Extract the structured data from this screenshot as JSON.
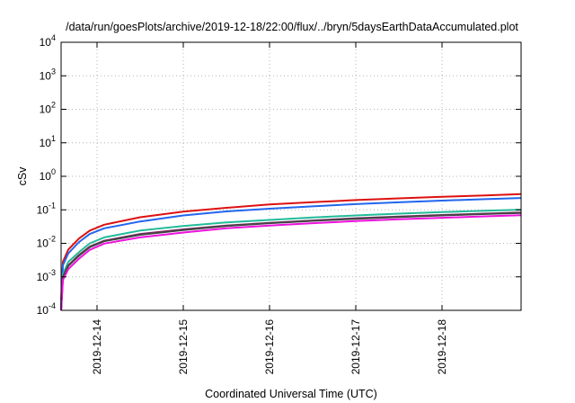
{
  "chart_data": {
    "type": "line",
    "title": "/data/run/goesPlots/archive/2019-12-18/22:00/flux/../bryn/5daysEarthDataAccumulated.plot",
    "xlabel": "Coordinated Universal Time (UTC)",
    "ylabel": "cSv",
    "y_scale": "log",
    "ylim": [
      0.0001,
      10000
    ],
    "xlim": [
      "2019-12-13 14:00",
      "2019-12-18 22:00"
    ],
    "x_ticks": [
      "2019-12-14",
      "2019-12-15",
      "2019-12-16",
      "2019-12-17",
      "2019-12-18"
    ],
    "y_ticks": [
      {
        "value": 0.0001,
        "base": "10",
        "exp": "-4"
      },
      {
        "value": 0.001,
        "base": "10",
        "exp": "-3"
      },
      {
        "value": 0.01,
        "base": "10",
        "exp": "-2"
      },
      {
        "value": 0.1,
        "base": "10",
        "exp": "-1"
      },
      {
        "value": 1,
        "base": "10",
        "exp": "0"
      },
      {
        "value": 10,
        "base": "10",
        "exp": "1"
      },
      {
        "value": 100,
        "base": "10",
        "exp": "2"
      },
      {
        "value": 1000,
        "base": "10",
        "exp": "3"
      },
      {
        "value": 10000,
        "base": "10",
        "exp": "4"
      }
    ],
    "grid": true,
    "legend": "none",
    "x": [
      "2019-12-13 14:00",
      "2019-12-13 14:30",
      "2019-12-13 16:00",
      "2019-12-13 19:00",
      "2019-12-13 22:00",
      "2019-12-14 02:00",
      "2019-12-14 12:00",
      "2019-12-15 00:00",
      "2019-12-15 12:00",
      "2019-12-16 00:00",
      "2019-12-16 12:00",
      "2019-12-17 00:00",
      "2019-12-17 12:00",
      "2019-12-18 00:00",
      "2019-12-18 12:00",
      "2019-12-18 22:00"
    ],
    "series": [
      {
        "color": "#dd1111",
        "values": [
          0.0002,
          0.0028,
          0.0065,
          0.014,
          0.024,
          0.036,
          0.06,
          0.088,
          0.115,
          0.145,
          0.17,
          0.195,
          0.22,
          0.245,
          0.27,
          0.295
        ]
      },
      {
        "color": "#2266ee",
        "values": [
          0.00015,
          0.0022,
          0.005,
          0.011,
          0.019,
          0.028,
          0.045,
          0.068,
          0.09,
          0.108,
          0.127,
          0.148,
          0.168,
          0.188,
          0.208,
          0.225
        ]
      },
      {
        "color": "#22bb99",
        "values": [
          0.0001,
          0.0012,
          0.0028,
          0.0055,
          0.01,
          0.015,
          0.024,
          0.033,
          0.042,
          0.05,
          0.059,
          0.068,
          0.077,
          0.086,
          0.094,
          0.101
        ]
      },
      {
        "color": "#882266",
        "values": [
          0.0001,
          0.001,
          0.0022,
          0.0045,
          0.008,
          0.012,
          0.019,
          0.026,
          0.034,
          0.041,
          0.048,
          0.056,
          0.063,
          0.07,
          0.077,
          0.083
        ]
      },
      {
        "color": "#444444",
        "values": [
          0.0001,
          0.00095,
          0.0021,
          0.0043,
          0.0077,
          0.0115,
          0.018,
          0.025,
          0.033,
          0.04,
          0.047,
          0.054,
          0.061,
          0.068,
          0.075,
          0.081
        ]
      },
      {
        "color": "#ee11dd",
        "values": [
          0.0001,
          0.0008,
          0.0017,
          0.0035,
          0.0064,
          0.0098,
          0.015,
          0.021,
          0.028,
          0.034,
          0.04,
          0.046,
          0.052,
          0.058,
          0.064,
          0.069
        ]
      }
    ]
  }
}
